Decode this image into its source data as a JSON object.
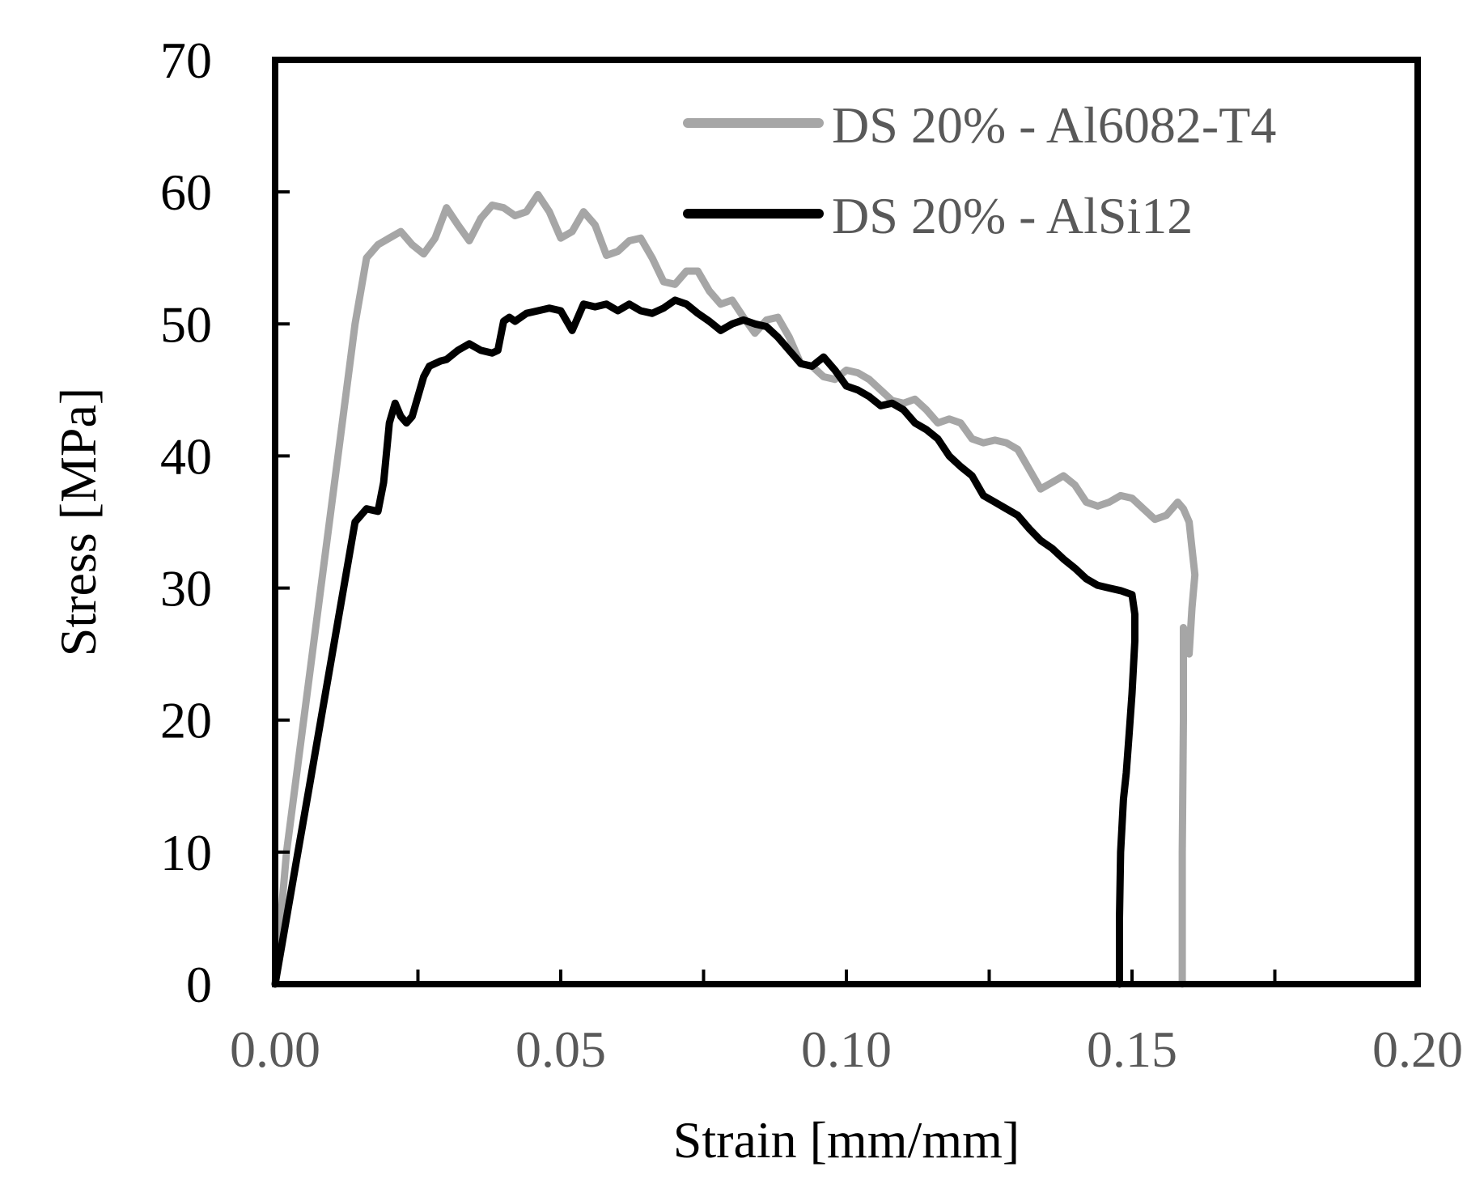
{
  "chart_data": {
    "type": "line",
    "xlabel": "Strain [mm/mm]",
    "ylabel": "Stress [MPa]",
    "xlim": [
      0.0,
      0.2
    ],
    "ylim": [
      0,
      70
    ],
    "x_ticks": [
      "0.00",
      "0.05",
      "0.10",
      "0.15",
      "0.20"
    ],
    "y_ticks": [
      "0",
      "10",
      "20",
      "30",
      "40",
      "50",
      "60",
      "70"
    ],
    "x_tick_color": "#595959",
    "y_tick_color": "#000000",
    "grid": false,
    "legend_position": "top-right",
    "series": [
      {
        "name": "DS 20% - Al6082-T4",
        "color": "#a6a6a6",
        "x": [
          0.0,
          0.002,
          0.005,
          0.008,
          0.011,
          0.014,
          0.016,
          0.018,
          0.02,
          0.022,
          0.024,
          0.026,
          0.028,
          0.03,
          0.032,
          0.034,
          0.036,
          0.038,
          0.04,
          0.042,
          0.044,
          0.046,
          0.048,
          0.05,
          0.052,
          0.054,
          0.056,
          0.058,
          0.06,
          0.062,
          0.064,
          0.066,
          0.068,
          0.07,
          0.072,
          0.074,
          0.076,
          0.078,
          0.08,
          0.082,
          0.084,
          0.086,
          0.088,
          0.09,
          0.092,
          0.094,
          0.096,
          0.098,
          0.1,
          0.102,
          0.104,
          0.106,
          0.108,
          0.11,
          0.112,
          0.114,
          0.116,
          0.118,
          0.12,
          0.122,
          0.124,
          0.126,
          0.128,
          0.13,
          0.132,
          0.134,
          0.136,
          0.138,
          0.14,
          0.142,
          0.144,
          0.146,
          0.148,
          0.15,
          0.152,
          0.154,
          0.156,
          0.158,
          0.159,
          0.16,
          0.1605,
          0.161,
          0.1605,
          0.16,
          0.1595,
          0.159,
          0.159,
          0.1588,
          0.1588
        ],
        "y": [
          0.0,
          10.0,
          20.0,
          30.0,
          40.0,
          50.0,
          55.0,
          56.0,
          56.5,
          57.0,
          56.0,
          55.3,
          56.5,
          58.8,
          57.5,
          56.3,
          58.0,
          59.0,
          58.8,
          58.2,
          58.5,
          59.8,
          58.5,
          56.5,
          57.0,
          58.5,
          57.5,
          55.2,
          55.5,
          56.3,
          56.5,
          55.0,
          53.2,
          53.0,
          54.0,
          54.0,
          52.5,
          51.5,
          51.8,
          50.5,
          49.3,
          50.3,
          50.5,
          49.0,
          47.0,
          46.8,
          46.0,
          45.8,
          46.5,
          46.3,
          45.8,
          45.0,
          44.2,
          44.0,
          44.3,
          43.5,
          42.5,
          42.8,
          42.5,
          41.3,
          41.0,
          41.2,
          41.0,
          40.5,
          39.0,
          37.5,
          38.0,
          38.5,
          37.8,
          36.5,
          36.2,
          36.5,
          37.0,
          36.8,
          36.0,
          35.2,
          35.5,
          36.5,
          36.0,
          35.0,
          33.0,
          31.0,
          28.5,
          25.0,
          26.5,
          27.0,
          20.0,
          10.0,
          0.0
        ]
      },
      {
        "name": "DS 20% - AlSi12",
        "color": "#000000",
        "x": [
          0.0,
          0.002,
          0.004,
          0.006,
          0.008,
          0.01,
          0.012,
          0.014,
          0.016,
          0.018,
          0.019,
          0.02,
          0.021,
          0.022,
          0.023,
          0.024,
          0.025,
          0.026,
          0.027,
          0.028,
          0.029,
          0.03,
          0.032,
          0.034,
          0.036,
          0.038,
          0.039,
          0.04,
          0.041,
          0.042,
          0.044,
          0.046,
          0.048,
          0.05,
          0.052,
          0.054,
          0.056,
          0.058,
          0.06,
          0.062,
          0.064,
          0.066,
          0.068,
          0.07,
          0.072,
          0.074,
          0.076,
          0.078,
          0.08,
          0.082,
          0.084,
          0.086,
          0.088,
          0.09,
          0.092,
          0.094,
          0.096,
          0.098,
          0.1,
          0.102,
          0.104,
          0.106,
          0.108,
          0.11,
          0.112,
          0.114,
          0.116,
          0.118,
          0.12,
          0.122,
          0.124,
          0.126,
          0.128,
          0.13,
          0.132,
          0.134,
          0.136,
          0.138,
          0.14,
          0.142,
          0.144,
          0.146,
          0.148,
          0.15,
          0.1505,
          0.1505,
          0.15,
          0.1495,
          0.149,
          0.1485,
          0.148,
          0.1478,
          0.1478
        ],
        "y": [
          0.0,
          5.0,
          10.0,
          15.0,
          20.0,
          25.0,
          30.0,
          35.0,
          36.0,
          35.8,
          38.0,
          42.5,
          44.0,
          43.0,
          42.5,
          43.0,
          44.5,
          46.0,
          46.8,
          47.0,
          47.2,
          47.3,
          48.0,
          48.5,
          48.0,
          47.8,
          48.0,
          50.2,
          50.5,
          50.2,
          50.8,
          51.0,
          51.2,
          51.0,
          49.5,
          51.5,
          51.3,
          51.5,
          51.0,
          51.5,
          51.0,
          50.8,
          51.2,
          51.8,
          51.5,
          50.8,
          50.2,
          49.5,
          50.0,
          50.3,
          50.0,
          49.8,
          49.0,
          48.0,
          47.0,
          46.8,
          47.5,
          46.5,
          45.3,
          45.0,
          44.5,
          43.8,
          44.0,
          43.5,
          42.5,
          42.0,
          41.3,
          40.0,
          39.2,
          38.5,
          37.0,
          36.5,
          36.0,
          35.5,
          34.5,
          33.6,
          33.0,
          32.2,
          31.5,
          30.7,
          30.2,
          30.0,
          29.8,
          29.5,
          28.0,
          26.0,
          22.0,
          19.0,
          16.0,
          14.0,
          10.0,
          5.0,
          0.0
        ]
      }
    ]
  }
}
